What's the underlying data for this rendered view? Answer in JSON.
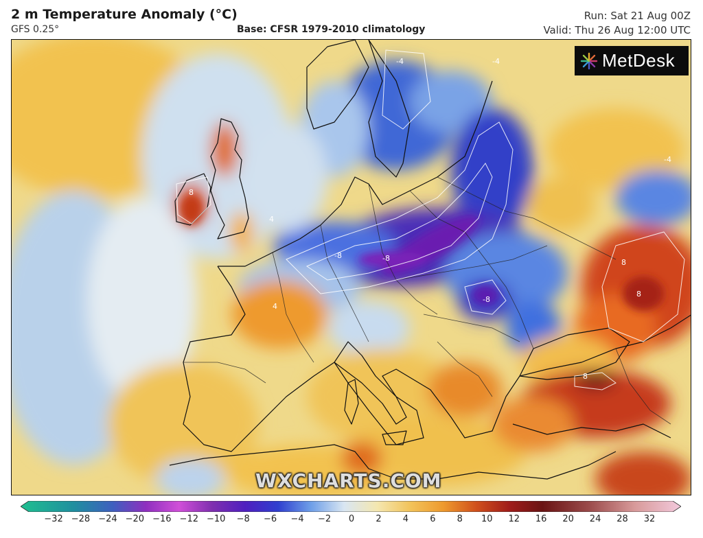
{
  "header": {
    "title": "2 m Temperature Anomaly (°C)",
    "model": "GFS 0.25°",
    "base": "Base: CFSR 1979-2010 climatology",
    "run": "Run: Sat 21 Aug 00Z",
    "valid": "Valid: Thu 26 Aug 12:00 UTC"
  },
  "logo": {
    "name": "MetDesk"
  },
  "watermark": "WXCHARTS.COM",
  "colorbar": {
    "labels": [
      "−32",
      "−28",
      "−24",
      "−20",
      "−16",
      "−12",
      "−10",
      "−8",
      "−6",
      "−4",
      "−2",
      "0",
      "2",
      "4",
      "6",
      "8",
      "10",
      "12",
      "16",
      "20",
      "24",
      "28",
      "32"
    ],
    "colors": [
      "#1fbf8f",
      "#1f8f9f",
      "#3f5fbf",
      "#5f3faf",
      "#8f2fbf",
      "#bf3fd8",
      "#7f2faf",
      "#4f1fbf",
      "#2f3fcf",
      "#3f6fdf",
      "#7fa9e8",
      "#d9e6f2",
      "#f4e7b0",
      "#f2c35a",
      "#ee9a2e",
      "#e0661e",
      "#c6391a",
      "#a01c1a",
      "#6a1414",
      "#8a3a3a",
      "#b86a6a",
      "#d89a9a",
      "#eec1d5"
    ]
  },
  "map_labels": {
    "cold_core_1": "-8",
    "cold_core_2": "-8",
    "cold_core_3": "-8",
    "warm_core_1": "8",
    "warm_core_2": "8",
    "warm_core_3": "8",
    "warm_core_4": "8",
    "contour_a": "-4",
    "contour_b": "-4",
    "contour_c": "-4",
    "contour_d": "4",
    "contour_e": "4"
  }
}
